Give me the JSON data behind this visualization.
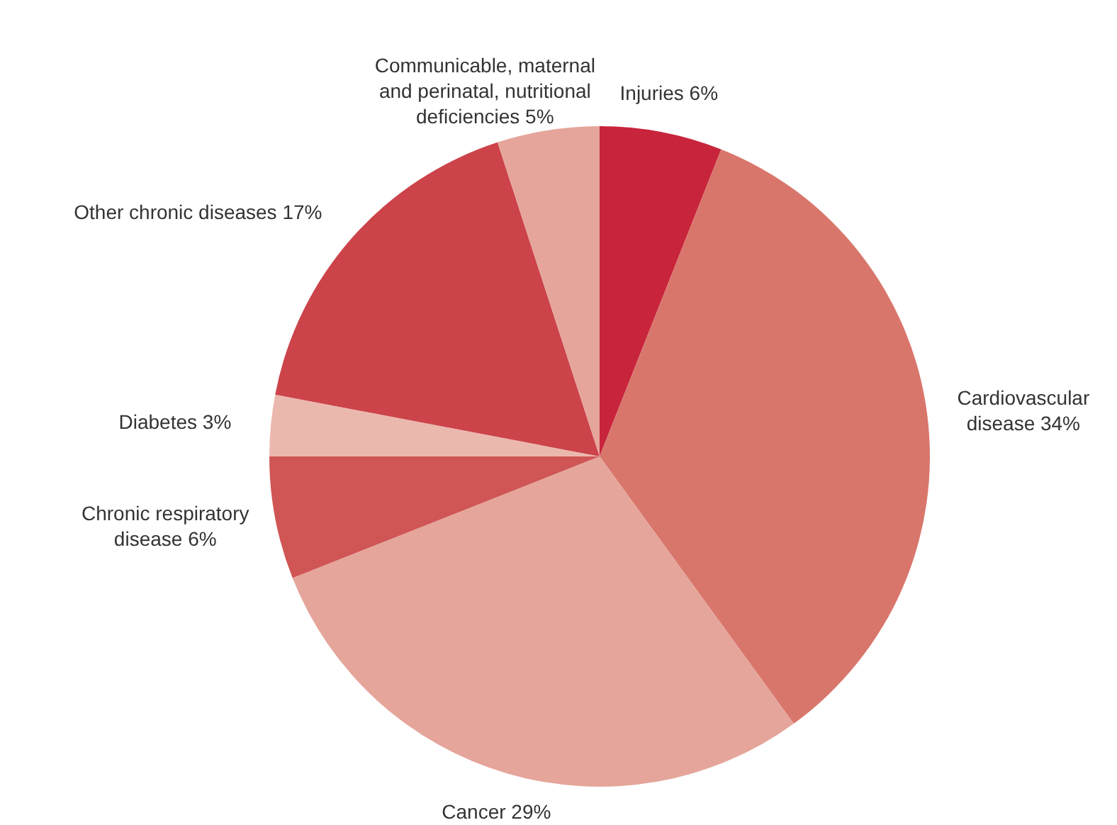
{
  "chart_data": {
    "type": "pie",
    "categories": [
      "Injuries",
      "Cardiovascular\ndisease",
      "Cancer",
      "Chronic respiratory\ndisease",
      "Diabetes",
      "Other chronic diseases",
      "Communicable, maternal\nand perinatal, nutritional\ndeficiencies"
    ],
    "values": [
      6,
      34,
      29,
      6,
      3,
      17,
      5
    ],
    "value_labels": [
      "6%",
      "34%",
      "29%",
      "6%",
      "3%",
      "17%",
      "5%"
    ],
    "colors": [
      "#c8243c",
      "#d9766c",
      "#e5a59a",
      "#d05555",
      "#ebb8ae",
      "#cc434a",
      "#e5a59a"
    ]
  }
}
